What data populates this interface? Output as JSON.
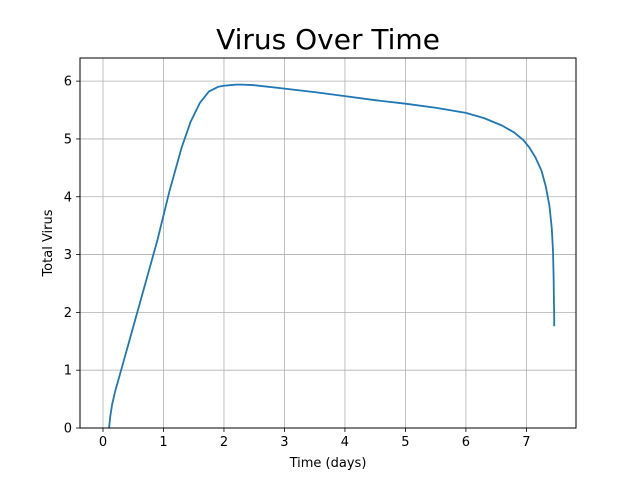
{
  "chart_data": {
    "type": "line",
    "title": "Virus Over Time",
    "xlabel": "Time (days)",
    "ylabel": "Total Virus",
    "xlim": [
      -0.38,
      7.82
    ],
    "ylim": [
      0,
      6.4
    ],
    "xticks": [
      0,
      1,
      2,
      3,
      4,
      5,
      6,
      7
    ],
    "yticks": [
      0,
      1,
      2,
      3,
      4,
      5,
      6
    ],
    "grid": true,
    "legend": "none",
    "series": [
      {
        "color": "#1f77b4",
        "x": [
          0.1,
          0.12,
          0.15,
          0.2,
          0.3,
          0.5,
          0.7,
          0.9,
          1.1,
          1.3,
          1.45,
          1.6,
          1.75,
          1.9,
          2.0,
          2.1,
          2.2,
          2.3,
          2.5,
          3.0,
          3.5,
          4.0,
          4.5,
          5.0,
          5.5,
          6.0,
          6.3,
          6.6,
          6.8,
          6.95,
          7.05,
          7.15,
          7.25,
          7.32,
          7.38,
          7.42,
          7.44,
          7.45,
          7.455,
          7.46,
          7.46
        ],
        "y": [
          0.0,
          0.2,
          0.4,
          0.63,
          1.0,
          1.75,
          2.5,
          3.25,
          4.1,
          4.85,
          5.3,
          5.62,
          5.82,
          5.9,
          5.92,
          5.93,
          5.94,
          5.94,
          5.93,
          5.87,
          5.81,
          5.74,
          5.67,
          5.61,
          5.54,
          5.45,
          5.36,
          5.23,
          5.11,
          4.98,
          4.85,
          4.68,
          4.45,
          4.18,
          3.85,
          3.45,
          3.05,
          2.6,
          2.2,
          1.9,
          1.76
        ]
      }
    ]
  }
}
